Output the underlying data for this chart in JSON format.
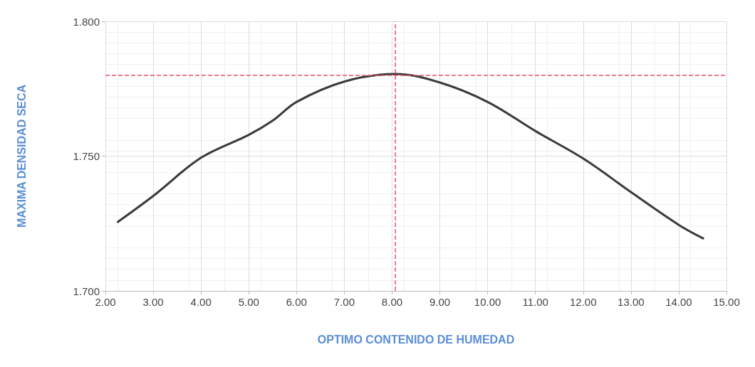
{
  "chart_data": {
    "type": "line",
    "xlabel": "OPTIMO CONTENIDO DE HUMEDAD",
    "ylabel": "MAXIMA DENSIDAD SECA",
    "series": [
      {
        "color": "#3a3a3a",
        "x": [
          2.26,
          3.02,
          4.0,
          5.0,
          5.52,
          6.0,
          7.01,
          8.07,
          9.0,
          10.0,
          11.01,
          12.01,
          13.02,
          14.0,
          14.51
        ],
        "values": [
          1.7256,
          1.7355,
          1.7494,
          1.7579,
          1.7634,
          1.7701,
          1.7777,
          1.7805,
          1.7773,
          1.7701,
          1.7592,
          1.749,
          1.7364,
          1.7245,
          1.7195
        ]
      }
    ],
    "xlim": [
      2,
      15
    ],
    "xticks": [
      {
        "value": 2,
        "label": "2.00"
      },
      {
        "value": 3,
        "label": "3.00"
      },
      {
        "value": 4,
        "label": "4.00"
      },
      {
        "value": 5,
        "label": "5.00"
      },
      {
        "value": 6,
        "label": "6.00"
      },
      {
        "value": 7,
        "label": "7.00"
      },
      {
        "value": 8,
        "label": "8.00"
      },
      {
        "value": 9,
        "label": "9.00"
      },
      {
        "value": 10,
        "label": "10.00"
      },
      {
        "value": 11,
        "label": "11.00"
      },
      {
        "value": 12,
        "label": "12.00"
      },
      {
        "value": 13,
        "label": "13.00"
      },
      {
        "value": 14,
        "label": "14.00"
      },
      {
        "value": 15,
        "label": "15.00"
      }
    ],
    "ylim": [
      1.7,
      1.8
    ],
    "yticks": [
      {
        "value": 1.7,
        "label": "1.700"
      },
      {
        "value": 1.75,
        "label": "1.750"
      },
      {
        "value": 1.8,
        "label": "1.800"
      }
    ],
    "ref_lines": [
      {
        "axis": "y",
        "value": 1.78,
        "color": "#e8506a",
        "line_style": "dashed"
      },
      {
        "axis": "x",
        "value": 8.07,
        "color": "#e8506a",
        "line_style": "dashed"
      }
    ],
    "grid": true,
    "marker": "none",
    "line_style": "solid"
  }
}
